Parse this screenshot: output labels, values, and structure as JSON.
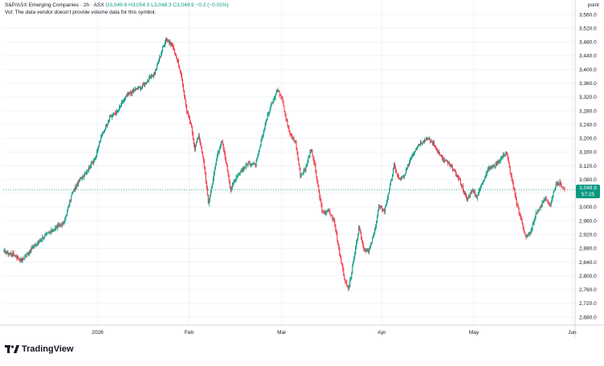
{
  "legend": {
    "title": "S&P/ASX Emerging Companies · 2h · ASX",
    "open": "O3,049.6",
    "high": "H3,054.0",
    "low": "L3,048.3",
    "close": "C3,049.9",
    "change": "−0.2 (−0.01%)",
    "volume_note": "Vol: The data vendor doesn't provide volume data for this symbol."
  },
  "price_axis_unit": "point",
  "last_price": {
    "value": "3,049.9",
    "countdown": "57:25"
  },
  "brand": "TradingView",
  "colors": {
    "up": "#089981",
    "down": "#f23645",
    "grid": "#f0f3fa",
    "text": "#131722",
    "price_line": "#089981"
  },
  "chart_data": {
    "type": "candlestick",
    "title": "S&P/ASX Emerging Companies",
    "ylabel": "point",
    "ylim": [
      2650,
      3575
    ],
    "y_ticks": [
      "3,560.0",
      "3,520.0",
      "3,480.0",
      "3,440.0",
      "3,400.0",
      "3,360.0",
      "3,320.0",
      "3,280.0",
      "3,240.0",
      "3,200.0",
      "3,160.0",
      "3,120.0",
      "3,080.0",
      "3,040.0",
      "3,000.0",
      "2,960.0",
      "2,920.0",
      "2,880.0",
      "2,840.0",
      "2,800.0",
      "2,760.0",
      "2,720.0",
      "2,680.0"
    ],
    "x_ticks": [
      {
        "label": "2026",
        "pos": 0.165
      },
      {
        "label": "Feb",
        "pos": 0.325
      },
      {
        "label": "Mar",
        "pos": 0.487
      },
      {
        "label": "Apr",
        "pos": 0.662
      },
      {
        "label": "May",
        "pos": 0.823
      },
      {
        "label": "Jun",
        "pos": 0.995
      }
    ],
    "last_close": 3049.9,
    "anchors": [
      [
        0,
        2870
      ],
      [
        12,
        2862
      ],
      [
        22,
        2845
      ],
      [
        35,
        2880
      ],
      [
        48,
        2910
      ],
      [
        62,
        2935
      ],
      [
        75,
        2955
      ],
      [
        85,
        3040
      ],
      [
        95,
        3080
      ],
      [
        105,
        3110
      ],
      [
        115,
        3150
      ],
      [
        122,
        3210
      ],
      [
        132,
        3260
      ],
      [
        142,
        3280
      ],
      [
        152,
        3320
      ],
      [
        162,
        3340
      ],
      [
        172,
        3350
      ],
      [
        180,
        3370
      ],
      [
        188,
        3390
      ],
      [
        195,
        3440
      ],
      [
        202,
        3490
      ],
      [
        210,
        3470
      ],
      [
        216,
        3430
      ],
      [
        222,
        3370
      ],
      [
        228,
        3280
      ],
      [
        234,
        3230
      ],
      [
        238,
        3170
      ],
      [
        243,
        3210
      ],
      [
        250,
        3120
      ],
      [
        255,
        3010
      ],
      [
        260,
        3070
      ],
      [
        267,
        3160
      ],
      [
        272,
        3190
      ],
      [
        278,
        3120
      ],
      [
        283,
        3050
      ],
      [
        290,
        3090
      ],
      [
        298,
        3110
      ],
      [
        306,
        3130
      ],
      [
        314,
        3120
      ],
      [
        320,
        3180
      ],
      [
        327,
        3250
      ],
      [
        334,
        3300
      ],
      [
        341,
        3340
      ],
      [
        347,
        3320
      ],
      [
        352,
        3260
      ],
      [
        357,
        3210
      ],
      [
        364,
        3190
      ],
      [
        370,
        3090
      ],
      [
        376,
        3110
      ],
      [
        383,
        3170
      ],
      [
        388,
        3120
      ],
      [
        393,
        3040
      ],
      [
        398,
        2980
      ],
      [
        405,
        2990
      ],
      [
        412,
        2960
      ],
      [
        418,
        2880
      ],
      [
        424,
        2800
      ],
      [
        430,
        2760
      ],
      [
        437,
        2850
      ],
      [
        443,
        2940
      ],
      [
        449,
        2880
      ],
      [
        455,
        2870
      ],
      [
        462,
        2920
      ],
      [
        468,
        3000
      ],
      [
        475,
        2990
      ],
      [
        481,
        3050
      ],
      [
        487,
        3120
      ],
      [
        493,
        3080
      ],
      [
        500,
        3090
      ],
      [
        507,
        3140
      ],
      [
        514,
        3170
      ],
      [
        521,
        3190
      ],
      [
        528,
        3200
      ],
      [
        534,
        3190
      ],
      [
        540,
        3170
      ],
      [
        547,
        3140
      ],
      [
        553,
        3130
      ],
      [
        560,
        3110
      ],
      [
        566,
        3090
      ],
      [
        572,
        3060
      ],
      [
        578,
        3020
      ],
      [
        584,
        3050
      ],
      [
        590,
        3030
      ],
      [
        597,
        3070
      ],
      [
        604,
        3110
      ],
      [
        612,
        3120
      ],
      [
        620,
        3140
      ],
      [
        627,
        3160
      ],
      [
        633,
        3090
      ],
      [
        640,
        3010
      ],
      [
        646,
        2960
      ],
      [
        652,
        2910
      ],
      [
        658,
        2930
      ],
      [
        664,
        2980
      ],
      [
        670,
        3000
      ],
      [
        676,
        3030
      ],
      [
        682,
        3000
      ],
      [
        688,
        3060
      ],
      [
        694,
        3070
      ],
      [
        700,
        3050
      ]
    ]
  }
}
